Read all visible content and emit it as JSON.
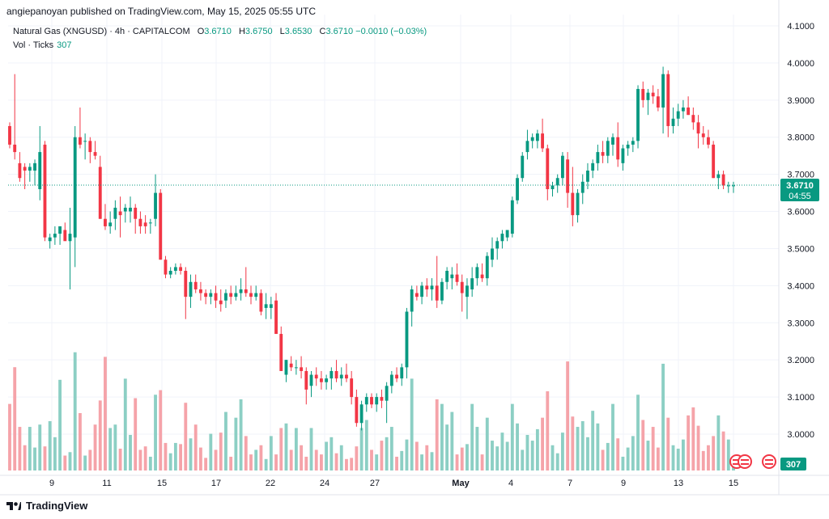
{
  "header": {
    "published": "angiepanoyan published on TradingView.com, May 15, 2025 05:55 UTC"
  },
  "legend": {
    "symbol": "Natural Gas (XNGUSD) · 4h · CAPITALCOM",
    "o_label": "O",
    "o_value": "3.6710",
    "h_label": "H",
    "h_value": "3.6750",
    "l_label": "L",
    "l_value": "3.6530",
    "c_label": "C",
    "c_value": "3.6710",
    "change": "−0.0010 (−0.03%)",
    "vol_label": "Vol · Ticks",
    "vol_value": "307"
  },
  "price_tag": {
    "price": "3.6710",
    "countdown": "04:55"
  },
  "volume_tag": "307",
  "footer": {
    "brand": "TradingView"
  },
  "colors": {
    "up": "#089981",
    "down": "#f23645",
    "vol_up": "#8ccfc4",
    "vol_down": "#f5a3a9",
    "grid": "#f0f3fa",
    "text": "#131722"
  },
  "chart_data": {
    "type": "candlestick",
    "y_ticks": [
      "4.1000",
      "4.0000",
      "3.9000",
      "3.8000",
      "3.7000",
      "3.6000",
      "3.5000",
      "3.4000",
      "3.3000",
      "3.2000",
      "3.1000",
      "3.0000"
    ],
    "x_ticks": [
      "9",
      "11",
      "15",
      "17",
      "22",
      "24",
      "27",
      "May",
      "4",
      "7",
      "9",
      "13",
      "15"
    ],
    "ylim": [
      2.905,
      4.115
    ],
    "last_price": 3.671,
    "candles": [
      [
        3.83,
        3.84,
        3.77,
        3.78,
        0.58
      ],
      [
        3.78,
        3.97,
        3.74,
        3.76,
        0.9
      ],
      [
        3.73,
        3.76,
        3.68,
        3.69,
        0.38
      ],
      [
        3.72,
        3.73,
        3.66,
        3.71,
        0.22
      ],
      [
        3.71,
        3.73,
        3.68,
        3.72,
        0.38
      ],
      [
        3.71,
        3.74,
        3.67,
        3.73,
        0.2
      ],
      [
        3.66,
        3.83,
        3.63,
        3.76,
        0.4
      ],
      [
        3.78,
        3.79,
        3.52,
        3.53,
        0.21
      ],
      [
        3.52,
        3.54,
        3.5,
        3.53,
        0.43
      ],
      [
        3.53,
        3.56,
        3.51,
        3.54,
        0.29
      ],
      [
        3.54,
        3.55,
        3.51,
        3.56,
        0.79
      ],
      [
        3.55,
        3.57,
        3.53,
        3.52,
        0.13
      ],
      [
        3.52,
        3.61,
        3.39,
        3.54,
        0.16
      ],
      [
        3.53,
        3.83,
        3.45,
        3.8,
        1.03
      ],
      [
        3.8,
        3.88,
        3.77,
        3.78,
        0.5
      ],
      [
        3.79,
        3.81,
        3.74,
        3.79,
        0.13
      ],
      [
        3.79,
        3.8,
        3.73,
        3.76,
        0.18
      ],
      [
        3.76,
        3.79,
        3.74,
        3.75,
        0.4
      ],
      [
        3.72,
        3.75,
        3.58,
        3.58,
        0.61
      ],
      [
        3.58,
        3.62,
        3.55,
        3.56,
        0.99
      ],
      [
        3.56,
        3.6,
        3.54,
        3.57,
        0.37
      ],
      [
        3.58,
        3.63,
        3.55,
        3.61,
        0.4
      ],
      [
        3.6,
        3.64,
        3.53,
        3.59,
        0.19
      ],
      [
        3.6,
        3.62,
        3.57,
        3.61,
        0.8
      ],
      [
        3.6,
        3.64,
        3.57,
        3.61,
        0.31
      ],
      [
        3.61,
        3.62,
        3.54,
        3.58,
        0.63
      ],
      [
        3.58,
        3.6,
        3.54,
        3.56,
        0.18
      ],
      [
        3.57,
        3.59,
        3.54,
        3.56,
        0.21
      ],
      [
        3.57,
        3.58,
        3.54,
        3.57,
        0.12
      ],
      [
        3.58,
        3.7,
        3.56,
        3.65,
        0.66
      ],
      [
        3.65,
        3.66,
        3.47,
        3.47,
        0.7
      ],
      [
        3.47,
        3.48,
        3.42,
        3.43,
        0.24
      ],
      [
        3.43,
        3.45,
        3.42,
        3.44,
        0.15
      ],
      [
        3.44,
        3.46,
        3.43,
        3.45,
        0.24
      ],
      [
        3.45,
        3.46,
        3.43,
        3.44,
        0.23
      ],
      [
        3.44,
        3.45,
        3.31,
        3.37,
        0.59
      ],
      [
        3.37,
        3.43,
        3.34,
        3.41,
        0.28
      ],
      [
        3.41,
        3.43,
        3.38,
        3.39,
        0.4
      ],
      [
        3.39,
        3.41,
        3.36,
        3.38,
        0.2
      ],
      [
        3.38,
        3.39,
        3.35,
        3.37,
        0.11
      ],
      [
        3.37,
        3.39,
        3.35,
        3.38,
        0.32
      ],
      [
        3.38,
        3.4,
        3.34,
        3.36,
        0.18
      ],
      [
        3.36,
        3.39,
        3.33,
        3.35,
        0.33
      ],
      [
        3.36,
        3.39,
        3.34,
        3.38,
        0.51
      ],
      [
        3.38,
        3.4,
        3.35,
        3.37,
        0.12
      ],
      [
        3.37,
        3.4,
        3.36,
        3.38,
        0.46
      ],
      [
        3.38,
        3.42,
        3.36,
        3.39,
        0.62
      ],
      [
        3.39,
        3.45,
        3.37,
        3.38,
        0.3
      ],
      [
        3.38,
        3.4,
        3.35,
        3.37,
        0.14
      ],
      [
        3.37,
        3.4,
        3.36,
        3.38,
        0.18
      ],
      [
        3.38,
        3.39,
        3.32,
        3.33,
        0.22
      ],
      [
        3.34,
        3.38,
        3.31,
        3.35,
        0.1
      ],
      [
        3.34,
        3.37,
        3.31,
        3.35,
        0.3
      ],
      [
        3.36,
        3.38,
        3.27,
        3.27,
        0.14
      ],
      [
        3.27,
        3.29,
        3.17,
        3.17,
        0.37
      ],
      [
        3.16,
        3.2,
        3.14,
        3.2,
        0.41
      ],
      [
        3.19,
        3.21,
        3.17,
        3.18,
        0.18
      ],
      [
        3.18,
        3.2,
        3.16,
        3.18,
        0.37
      ],
      [
        3.18,
        3.21,
        3.15,
        3.17,
        0.22
      ],
      [
        3.17,
        3.18,
        3.08,
        3.12,
        0.12
      ],
      [
        3.13,
        3.17,
        3.1,
        3.16,
        0.37
      ],
      [
        3.16,
        3.18,
        3.13,
        3.15,
        0.18
      ],
      [
        3.15,
        3.17,
        3.12,
        3.14,
        0.14
      ],
      [
        3.14,
        3.16,
        3.12,
        3.15,
        0.25
      ],
      [
        3.15,
        3.18,
        3.12,
        3.17,
        0.29
      ],
      [
        3.17,
        3.2,
        3.14,
        3.15,
        0.15
      ],
      [
        3.15,
        3.18,
        3.13,
        3.16,
        0.22
      ],
      [
        3.16,
        3.19,
        3.14,
        3.15,
        0.1
      ],
      [
        3.15,
        3.17,
        3.08,
        3.1,
        0.11
      ],
      [
        3.1,
        3.12,
        3.02,
        3.03,
        0.21
      ],
      [
        3.03,
        3.09,
        3.01,
        3.08,
        0.37
      ],
      [
        3.08,
        3.11,
        3.06,
        3.1,
        0.44
      ],
      [
        3.1,
        3.11,
        3.07,
        3.08,
        0.18
      ],
      [
        3.08,
        3.11,
        3.06,
        3.1,
        0.14
      ],
      [
        3.1,
        3.12,
        3.07,
        3.09,
        0.26
      ],
      [
        3.09,
        3.14,
        3.03,
        3.13,
        0.29
      ],
      [
        3.13,
        3.17,
        3.11,
        3.16,
        0.38
      ],
      [
        3.16,
        3.18,
        3.14,
        3.15,
        0.12
      ],
      [
        3.15,
        3.19,
        3.13,
        3.18,
        0.17
      ],
      [
        3.18,
        3.34,
        3.15,
        3.33,
        0.27
      ],
      [
        3.33,
        3.4,
        3.29,
        3.39,
        0.8
      ],
      [
        3.38,
        3.4,
        3.36,
        3.37,
        0.25
      ],
      [
        3.37,
        3.41,
        3.35,
        3.4,
        0.14
      ],
      [
        3.4,
        3.42,
        3.37,
        3.39,
        0.22
      ],
      [
        3.39,
        3.42,
        3.36,
        3.4,
        0.16
      ],
      [
        3.4,
        3.48,
        3.34,
        3.36,
        0.62
      ],
      [
        3.36,
        3.42,
        3.35,
        3.41,
        0.58
      ],
      [
        3.41,
        3.45,
        3.39,
        3.44,
        0.4
      ],
      [
        3.42,
        3.45,
        3.39,
        3.43,
        0.51
      ],
      [
        3.43,
        3.46,
        3.4,
        3.41,
        0.14
      ],
      [
        3.41,
        3.43,
        3.33,
        3.38,
        0.2
      ],
      [
        3.37,
        3.42,
        3.31,
        3.4,
        0.23
      ],
      [
        3.39,
        3.45,
        3.37,
        3.42,
        0.58
      ],
      [
        3.42,
        3.46,
        3.4,
        3.45,
        0.38
      ],
      [
        3.43,
        3.46,
        3.41,
        3.42,
        0.14
      ],
      [
        3.42,
        3.49,
        3.4,
        3.48,
        0.46
      ],
      [
        3.47,
        3.53,
        3.45,
        3.5,
        0.26
      ],
      [
        3.5,
        3.53,
        3.47,
        3.52,
        0.21
      ],
      [
        3.52,
        3.55,
        3.5,
        3.54,
        0.33
      ],
      [
        3.53,
        3.55,
        3.52,
        3.55,
        0.25
      ],
      [
        3.54,
        3.64,
        3.53,
        3.63,
        0.58
      ],
      [
        3.63,
        3.7,
        3.62,
        3.69,
        0.41
      ],
      [
        3.69,
        3.76,
        3.68,
        3.75,
        0.18
      ],
      [
        3.76,
        3.82,
        3.74,
        3.79,
        0.31
      ],
      [
        3.79,
        3.81,
        3.77,
        3.8,
        0.26
      ],
      [
        3.79,
        3.82,
        3.77,
        3.81,
        0.36
      ],
      [
        3.81,
        3.85,
        3.76,
        3.77,
        0.46
      ],
      [
        3.77,
        3.78,
        3.63,
        3.66,
        0.69
      ],
      [
        3.66,
        3.68,
        3.64,
        3.67,
        0.22
      ],
      [
        3.67,
        3.7,
        3.65,
        3.69,
        0.15
      ],
      [
        3.69,
        3.76,
        3.67,
        3.75,
        0.33
      ],
      [
        3.74,
        3.76,
        3.61,
        3.65,
        0.95
      ],
      [
        3.65,
        3.72,
        3.56,
        3.59,
        0.47
      ],
      [
        3.59,
        3.66,
        3.57,
        3.65,
        0.38
      ],
      [
        3.65,
        3.7,
        3.62,
        3.68,
        0.43
      ],
      [
        3.68,
        3.73,
        3.66,
        3.71,
        0.29
      ],
      [
        3.71,
        3.74,
        3.69,
        3.73,
        0.52
      ],
      [
        3.73,
        3.78,
        3.71,
        3.76,
        0.41
      ],
      [
        3.76,
        3.79,
        3.73,
        3.75,
        0.18
      ],
      [
        3.75,
        3.8,
        3.73,
        3.79,
        0.24
      ],
      [
        3.78,
        3.81,
        3.75,
        3.8,
        0.58
      ],
      [
        3.8,
        3.84,
        3.72,
        3.74,
        0.28
      ],
      [
        3.73,
        3.78,
        3.71,
        3.77,
        0.12
      ],
      [
        3.77,
        3.79,
        3.75,
        3.78,
        0.2
      ],
      [
        3.78,
        3.8,
        3.76,
        3.79,
        0.3
      ],
      [
        3.79,
        3.94,
        3.77,
        3.93,
        0.66
      ],
      [
        3.93,
        3.95,
        3.88,
        3.9,
        0.44
      ],
      [
        3.9,
        3.93,
        3.86,
        3.92,
        0.26
      ],
      [
        3.92,
        3.94,
        3.89,
        3.91,
        0.38
      ],
      [
        3.91,
        3.93,
        3.87,
        3.88,
        0.2
      ],
      [
        3.88,
        3.99,
        3.81,
        3.97,
        0.93
      ],
      [
        3.97,
        3.98,
        3.8,
        3.83,
        0.46
      ],
      [
        3.83,
        3.88,
        3.81,
        3.85,
        0.22
      ],
      [
        3.85,
        3.89,
        3.83,
        3.87,
        0.19
      ],
      [
        3.87,
        3.9,
        3.85,
        3.88,
        0.27
      ],
      [
        3.88,
        3.91,
        3.86,
        3.86,
        0.48
      ],
      [
        3.86,
        3.88,
        3.82,
        3.84,
        0.55
      ],
      [
        3.84,
        3.86,
        3.77,
        3.81,
        0.39
      ],
      [
        3.81,
        3.83,
        3.78,
        3.8,
        0.17
      ],
      [
        3.8,
        3.82,
        3.77,
        3.78,
        0.22
      ],
      [
        3.78,
        3.79,
        3.69,
        3.69,
        0.3
      ],
      [
        3.69,
        3.71,
        3.66,
        3.7,
        0.48
      ],
      [
        3.7,
        3.71,
        3.66,
        3.67,
        0.34
      ],
      [
        3.67,
        3.68,
        3.65,
        3.67,
        0.27
      ],
      [
        3.67,
        3.68,
        3.65,
        3.67,
        0.1
      ]
    ]
  }
}
